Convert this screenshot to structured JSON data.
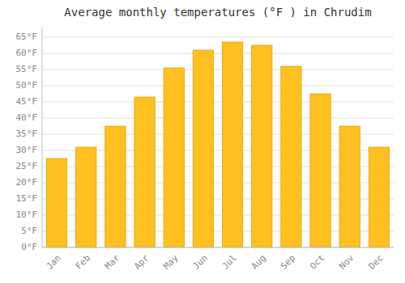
{
  "chart_data": {
    "type": "bar",
    "title": "Average monthly temperatures (°F ) in Chrudim",
    "categories": [
      "Jan",
      "Feb",
      "Mar",
      "Apr",
      "May",
      "Jun",
      "Jul",
      "Aug",
      "Sep",
      "Oct",
      "Nov",
      "Dec"
    ],
    "values": [
      27.5,
      31.0,
      37.5,
      46.5,
      55.5,
      61.0,
      63.5,
      62.5,
      56.0,
      47.5,
      37.5,
      31.0
    ],
    "color": "#FFC020",
    "ylim": [
      0,
      68
    ],
    "yticks": [
      {
        "value": 0,
        "label": "0°F"
      },
      {
        "value": 5,
        "label": "5°F"
      },
      {
        "value": 10,
        "label": "10°F"
      },
      {
        "value": 15,
        "label": "15°F"
      },
      {
        "value": 20,
        "label": "20°F"
      },
      {
        "value": 25,
        "label": "25°F"
      },
      {
        "value": 30,
        "label": "30°F"
      },
      {
        "value": 35,
        "label": "35°F"
      },
      {
        "value": 40,
        "label": "40°F"
      },
      {
        "value": 45,
        "label": "45°F"
      },
      {
        "value": 50,
        "label": "50°F"
      },
      {
        "value": 55,
        "label": "55°F"
      },
      {
        "value": 60,
        "label": "60°F"
      },
      {
        "value": 65,
        "label": "65°F"
      }
    ],
    "grid": true
  }
}
